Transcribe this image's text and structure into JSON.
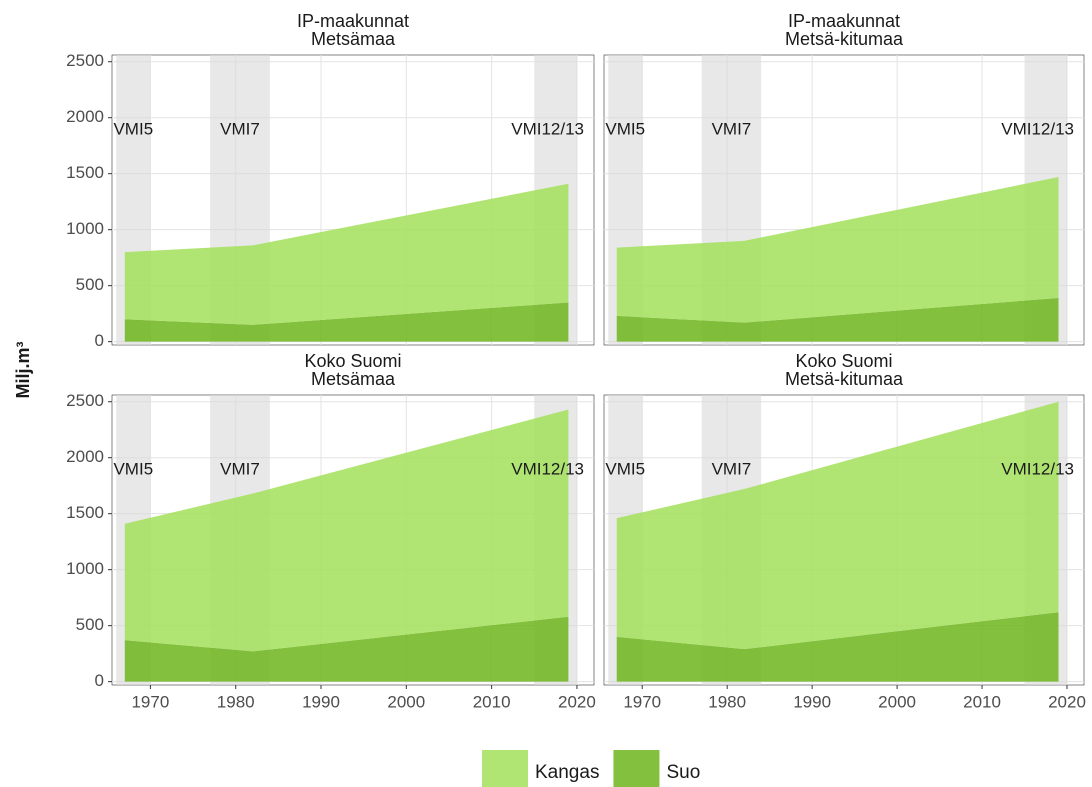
{
  "y_axis_label": "Milj.m³",
  "chart_data": [
    {
      "type": "area",
      "title": "IP-maakunnat",
      "subtitle": "Metsämaa",
      "x": [
        1967,
        1982,
        2019
      ],
      "series": [
        {
          "name": "Suo",
          "color": "#6cb51c",
          "values": [
            200,
            150,
            350
          ]
        },
        {
          "name": "Kangas",
          "color": "#a3e05a",
          "values": [
            600,
            710,
            1060
          ]
        }
      ],
      "bands": [
        {
          "label": "VMI5",
          "start": 1966,
          "end": 1970
        },
        {
          "label": "VMI7",
          "start": 1977,
          "end": 1984
        },
        {
          "label": "VMI12/13",
          "start": 2015,
          "end": 2020
        }
      ],
      "xlim": [
        1965.5,
        2022
      ],
      "xticks": [
        1970,
        1980,
        1990,
        2000,
        2010,
        2020
      ],
      "ylim": [
        -30,
        2560
      ],
      "yticks": [
        0,
        500,
        1000,
        1500,
        2000,
        2500
      ],
      "grid": true
    },
    {
      "type": "area",
      "title": "IP-maakunnat",
      "subtitle": "Metsä-kitumaa",
      "x": [
        1967,
        1982,
        2019
      ],
      "series": [
        {
          "name": "Suo",
          "color": "#6cb51c",
          "values": [
            230,
            170,
            390
          ]
        },
        {
          "name": "Kangas",
          "color": "#a3e05a",
          "values": [
            610,
            730,
            1080
          ]
        }
      ],
      "bands": [
        {
          "label": "VMI5",
          "start": 1966,
          "end": 1970
        },
        {
          "label": "VMI7",
          "start": 1977,
          "end": 1984
        },
        {
          "label": "VMI12/13",
          "start": 2015,
          "end": 2020
        }
      ],
      "xlim": [
        1965.5,
        2022
      ],
      "xticks": [
        1970,
        1980,
        1990,
        2000,
        2010,
        2020
      ],
      "ylim": [
        -30,
        2560
      ],
      "yticks": [
        0,
        500,
        1000,
        1500,
        2000,
        2500
      ],
      "grid": true
    },
    {
      "type": "area",
      "title": "Koko Suomi",
      "subtitle": "Metsämaa",
      "x": [
        1967,
        1982,
        2019
      ],
      "series": [
        {
          "name": "Suo",
          "color": "#6cb51c",
          "values": [
            370,
            270,
            580
          ]
        },
        {
          "name": "Kangas",
          "color": "#a3e05a",
          "values": [
            1040,
            1410,
            1850
          ]
        }
      ],
      "bands": [
        {
          "label": "VMI5",
          "start": 1966,
          "end": 1970
        },
        {
          "label": "VMI7",
          "start": 1977,
          "end": 1984
        },
        {
          "label": "VMI12/13",
          "start": 2015,
          "end": 2020
        }
      ],
      "xlim": [
        1965.5,
        2022
      ],
      "xticks": [
        1970,
        1980,
        1990,
        2000,
        2010,
        2020
      ],
      "ylim": [
        -30,
        2560
      ],
      "yticks": [
        0,
        500,
        1000,
        1500,
        2000,
        2500
      ],
      "grid": true
    },
    {
      "type": "area",
      "title": "Koko Suomi",
      "subtitle": "Metsä-kitumaa",
      "x": [
        1967,
        1982,
        2019
      ],
      "series": [
        {
          "name": "Suo",
          "color": "#6cb51c",
          "values": [
            400,
            290,
            620
          ]
        },
        {
          "name": "Kangas",
          "color": "#a3e05a",
          "values": [
            1060,
            1430,
            1880
          ]
        }
      ],
      "bands": [
        {
          "label": "VMI5",
          "start": 1966,
          "end": 1970
        },
        {
          "label": "VMI7",
          "start": 1977,
          "end": 1984
        },
        {
          "label": "VMI12/13",
          "start": 2015,
          "end": 2020
        }
      ],
      "xlim": [
        1965.5,
        2022
      ],
      "xticks": [
        1970,
        1980,
        1990,
        2000,
        2010,
        2020
      ],
      "ylim": [
        -30,
        2560
      ],
      "yticks": [
        0,
        500,
        1000,
        1500,
        2000,
        2500
      ],
      "grid": true
    }
  ]
}
